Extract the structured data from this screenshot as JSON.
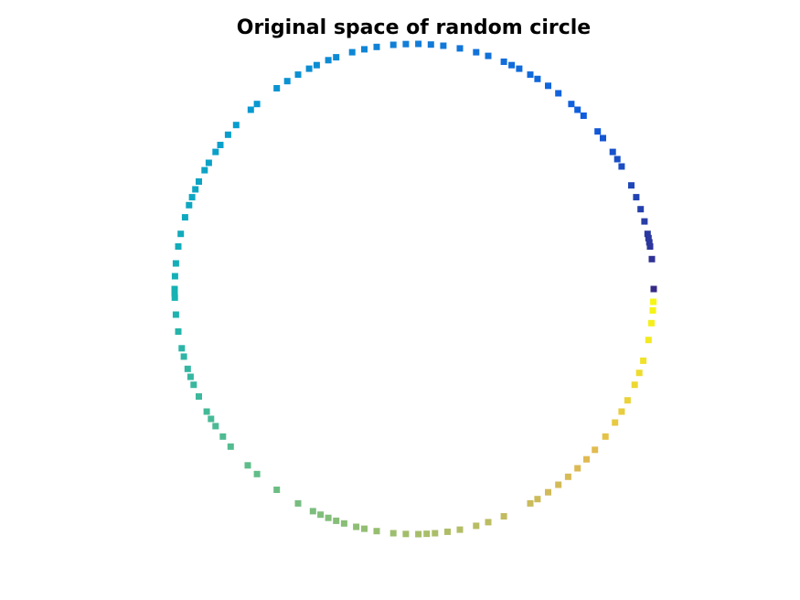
{
  "chart_data": {
    "type": "scatter",
    "title": "Original space of random circle",
    "xlabel": "",
    "ylabel": "",
    "axes_visible": false,
    "grid": false,
    "colormap": "parula",
    "marker": "square",
    "note_on_units": "axes are hidden; values are on the unit circle",
    "points_angle_deg": [
      0,
      7,
      10,
      11,
      12,
      13,
      16,
      19,
      22,
      25,
      30,
      32,
      34,
      38,
      40,
      45,
      47,
      49,
      53,
      56,
      59,
      61,
      64,
      66,
      68,
      72,
      75,
      79,
      83,
      86,
      89,
      92,
      95,
      99,
      102,
      105,
      109,
      111,
      114,
      116,
      119,
      122,
      125,
      131,
      133,
      138,
      141,
      144,
      146,
      149,
      151,
      154,
      156,
      158,
      160,
      163,
      167,
      170,
      174,
      177,
      180,
      181,
      182,
      186,
      190,
      194,
      196,
      199,
      201,
      203,
      206,
      210,
      212,
      214,
      217,
      220,
      226,
      229,
      235,
      241,
      245,
      247,
      249,
      251,
      253,
      256,
      258,
      261,
      265,
      268,
      271,
      273,
      275,
      278,
      281,
      285,
      288,
      292,
      299,
      301,
      304,
      307,
      310,
      313,
      316,
      319,
      323,
      327,
      330,
      333,
      337,
      340,
      343,
      348,
      352,
      355,
      357
    ]
  }
}
